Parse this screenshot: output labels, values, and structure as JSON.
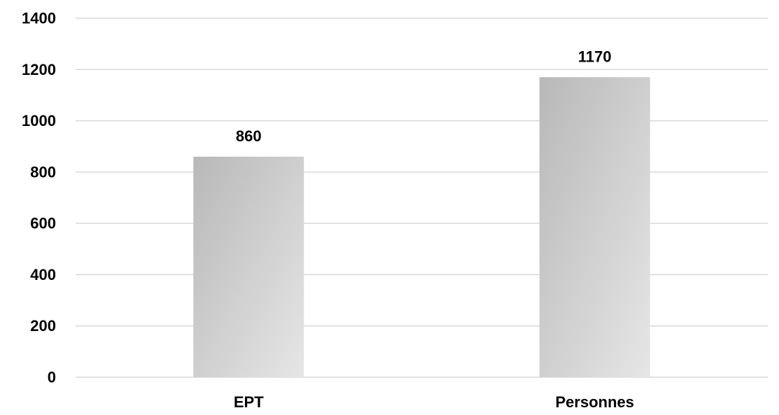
{
  "chart_data": {
    "type": "bar",
    "categories": [
      "EPT",
      "Personnes"
    ],
    "values": [
      860,
      1170
    ],
    "data_labels": [
      "860",
      "1170"
    ],
    "title": "",
    "xlabel": "",
    "ylabel": "",
    "ylim": [
      0,
      1400
    ],
    "yticks": [
      0,
      200,
      400,
      600,
      800,
      1000,
      1200,
      1400
    ],
    "ytick_labels": [
      "0",
      "200",
      "400",
      "600",
      "800",
      "1000",
      "1200",
      "1400"
    ],
    "grid": true,
    "legend": "none",
    "colors": {
      "bar_gradient_start": "#b8b8b8",
      "bar_gradient_end": "#e6e6e6",
      "gridline": "#d9d9d9",
      "text": "#000000"
    }
  }
}
